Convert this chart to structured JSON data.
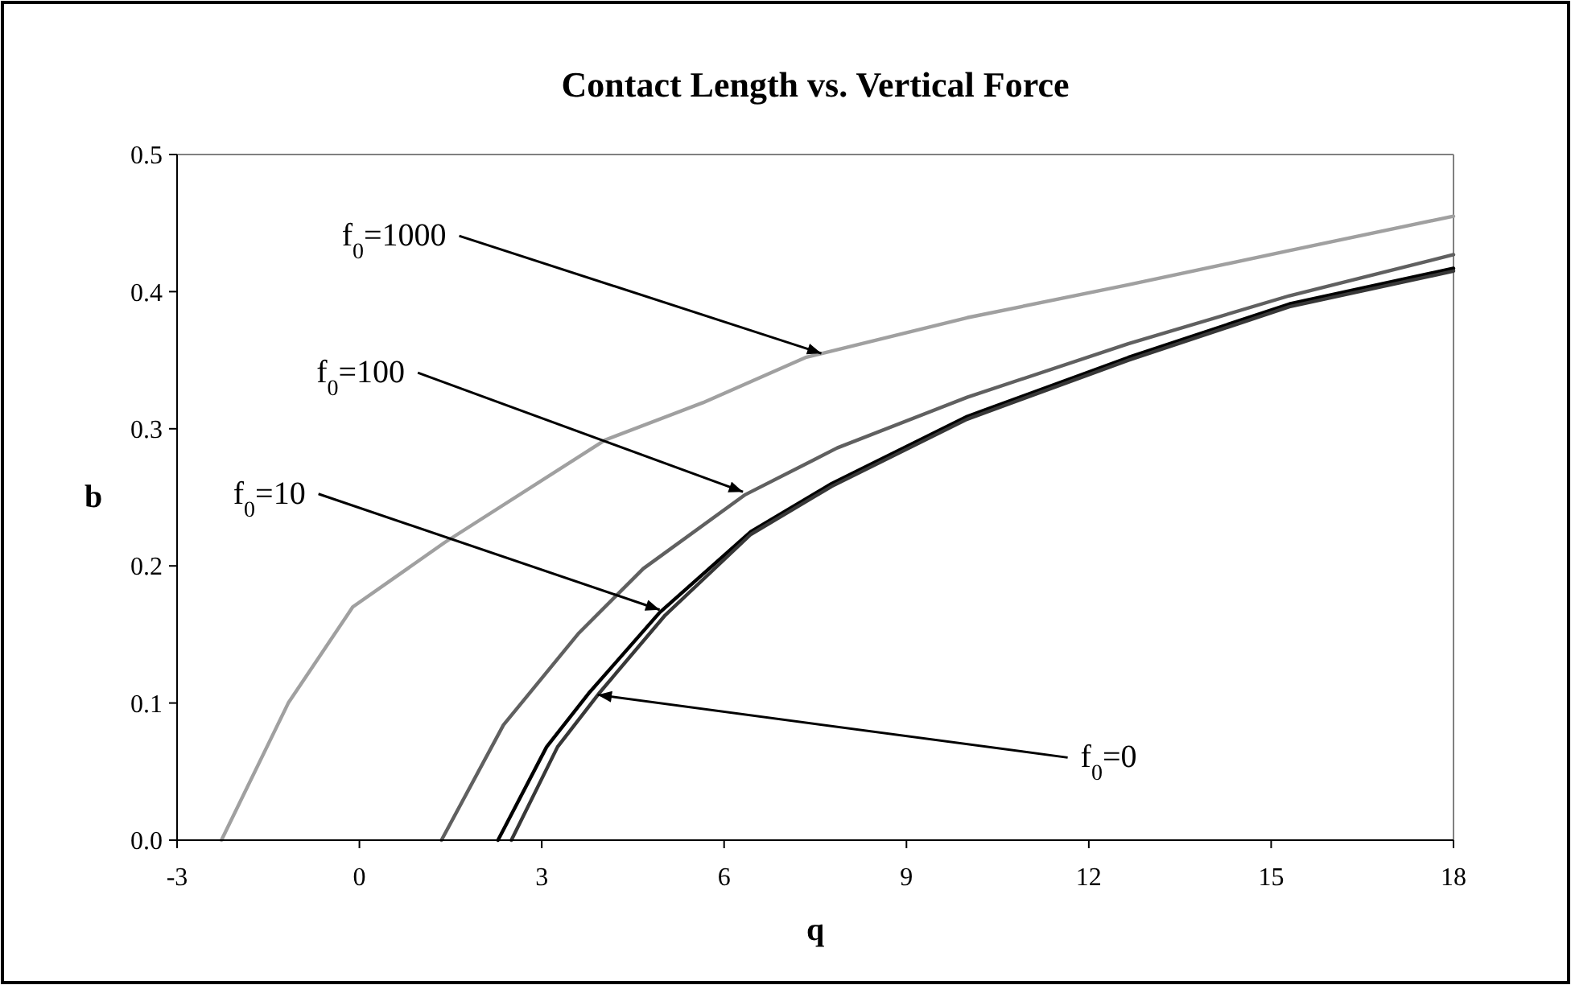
{
  "chart_data": {
    "type": "line",
    "title": "Contact Length vs. Vertical Force",
    "xlabel": "q",
    "ylabel": "b",
    "xlim": [
      -3,
      18
    ],
    "xticks": [
      -3,
      0,
      3,
      6,
      9,
      12,
      15,
      18
    ],
    "ylim": [
      0,
      0.5
    ],
    "yticks": [
      {
        "value": 0,
        "label": "0.0"
      },
      0.1,
      0.2,
      0.3,
      0.4,
      0.5
    ],
    "grid": false,
    "marker": "none",
    "line_style": "solid",
    "series": [
      {
        "color": "#a0a0a0",
        "x": [
          -2.27,
          -1.17,
          -0.11,
          1.4,
          4.05,
          5.65,
          7.34,
          10.0,
          12.65,
          15.3,
          18
        ],
        "values": [
          0,
          0.1,
          0.17,
          0.217,
          0.292,
          0.319,
          0.352,
          0.381,
          0.405,
          0.43,
          0.455
        ]
      },
      {
        "color": "#606060",
        "x": [
          1.35,
          2.37,
          3.61,
          4.67,
          6.35,
          7.86,
          10.0,
          12.65,
          15.3,
          18
        ],
        "values": [
          0,
          0.084,
          0.151,
          0.198,
          0.252,
          0.286,
          0.323,
          0.362,
          0.397,
          0.427
        ]
      },
      {
        "color": "#000000",
        "x": [
          2.28,
          3.08,
          3.79,
          4.94,
          6.44,
          7.77,
          10.0,
          12.65,
          15.3,
          18
        ],
        "values": [
          0,
          0.068,
          0.108,
          0.166,
          0.225,
          0.26,
          0.309,
          0.352,
          0.391,
          0.417
        ]
      },
      {
        "color": "#383838",
        "x": [
          2.5,
          3.26,
          3.96,
          5.03,
          6.44,
          7.77,
          10.0,
          12.65,
          15.3,
          18
        ],
        "values": [
          0,
          0.068,
          0.108,
          0.164,
          0.223,
          0.258,
          0.307,
          0.35,
          0.389,
          0.415
        ]
      }
    ],
    "annotations": [
      {
        "text": "f$_{0}$=1000",
        "x": 7.6,
        "y": 0.355
      },
      {
        "text": "f$_{0}$=100",
        "x": 6.31,
        "y": 0.254
      },
      {
        "text": "f$_{0}$=10",
        "x": 4.94,
        "y": 0.168
      },
      {
        "text": "f$_{0}$=0",
        "x": 3.92,
        "y": 0.106
      }
    ]
  }
}
